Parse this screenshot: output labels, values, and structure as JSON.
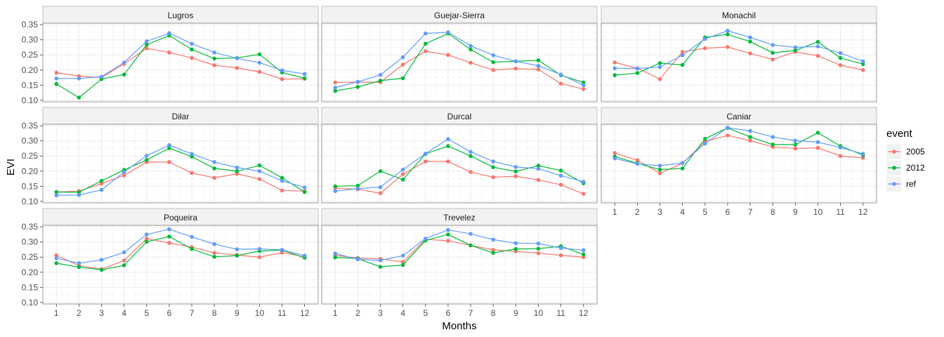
{
  "chart_data": {
    "type": "line",
    "facet_layout": "3 rows x 3 columns, free x labels on bottom facets",
    "xlabel": "Months",
    "ylabel": "EVI",
    "x": [
      1,
      2,
      3,
      4,
      5,
      6,
      7,
      8,
      9,
      10,
      11,
      12
    ],
    "x_tick_labels": [
      "1",
      "2",
      "3",
      "4",
      "5",
      "6",
      "7",
      "8",
      "9",
      "10",
      "11",
      "12"
    ],
    "ylim": [
      0.095,
      0.355
    ],
    "y_ticks": [
      0.1,
      0.15,
      0.2,
      0.25,
      0.3,
      0.35
    ],
    "y_tick_labels": [
      "0.10",
      "0.15",
      "0.20",
      "0.25",
      "0.30",
      "0.35"
    ],
    "grid": true,
    "theme": "bw",
    "legend": {
      "title": "event",
      "placement": "right",
      "entries": [
        {
          "label": "2005",
          "color": "#F8766D"
        },
        {
          "label": "2012",
          "color": "#00BA38"
        },
        {
          "label": "ref",
          "color": "#619CFF"
        }
      ]
    },
    "panels": [
      {
        "name": "Lugros",
        "series": [
          {
            "name": "2005",
            "values": [
              0.191,
              0.18,
              0.175,
              0.22,
              0.272,
              0.258,
              0.24,
              0.216,
              0.207,
              0.194,
              0.17,
              0.171
            ]
          },
          {
            "name": "2012",
            "values": [
              0.154,
              0.109,
              0.17,
              0.185,
              0.284,
              0.314,
              0.268,
              0.238,
              0.24,
              0.252,
              0.192,
              0.173
            ]
          },
          {
            "name": "ref",
            "values": [
              0.172,
              0.172,
              0.178,
              0.225,
              0.295,
              0.322,
              0.287,
              0.258,
              0.239,
              0.224,
              0.199,
              0.187
            ]
          }
        ]
      },
      {
        "name": "Guejar-Sierra",
        "series": [
          {
            "name": "2005",
            "values": [
              0.159,
              0.16,
              0.16,
              0.218,
              0.262,
              0.25,
              0.224,
              0.2,
              0.205,
              0.202,
              0.155,
              0.137
            ]
          },
          {
            "name": "2012",
            "values": [
              0.131,
              0.144,
              0.165,
              0.173,
              0.287,
              0.321,
              0.268,
              0.226,
              0.229,
              0.232,
              0.183,
              0.159
            ]
          },
          {
            "name": "ref",
            "values": [
              0.142,
              0.161,
              0.184,
              0.242,
              0.321,
              0.325,
              0.28,
              0.249,
              0.229,
              0.214,
              0.185,
              0.15
            ]
          }
        ]
      },
      {
        "name": "Monachil",
        "series": [
          {
            "name": "2005",
            "values": [
              0.225,
              0.206,
              0.17,
              0.26,
              0.272,
              0.276,
              0.255,
              0.235,
              0.26,
              0.247,
              0.216,
              0.2
            ]
          },
          {
            "name": "2012",
            "values": [
              0.183,
              0.19,
              0.223,
              0.217,
              0.308,
              0.318,
              0.294,
              0.257,
              0.265,
              0.293,
              0.24,
              0.22
            ]
          },
          {
            "name": "ref",
            "values": [
              0.206,
              0.205,
              0.21,
              0.249,
              0.303,
              0.33,
              0.308,
              0.283,
              0.275,
              0.278,
              0.256,
              0.229
            ]
          }
        ]
      },
      {
        "name": "Dilar",
        "series": [
          {
            "name": "2005",
            "values": [
              0.131,
              0.134,
              0.159,
              0.186,
              0.23,
              0.23,
              0.194,
              0.178,
              0.191,
              0.174,
              0.136,
              0.134
            ]
          },
          {
            "name": "2012",
            "values": [
              0.131,
              0.13,
              0.168,
              0.204,
              0.237,
              0.276,
              0.248,
              0.209,
              0.2,
              0.219,
              0.178,
              0.131
            ]
          },
          {
            "name": "ref",
            "values": [
              0.12,
              0.121,
              0.138,
              0.197,
              0.251,
              0.286,
              0.257,
              0.23,
              0.212,
              0.2,
              0.168,
              0.146
            ]
          }
        ]
      },
      {
        "name": "Durcal",
        "series": [
          {
            "name": "2005",
            "values": [
              0.144,
              0.14,
              0.127,
              0.19,
              0.232,
              0.232,
              0.197,
              0.18,
              0.183,
              0.171,
              0.155,
              0.125
            ]
          },
          {
            "name": "2012",
            "values": [
              0.15,
              0.152,
              0.2,
              0.172,
              0.257,
              0.283,
              0.25,
              0.213,
              0.199,
              0.218,
              0.202,
              0.16
            ]
          },
          {
            "name": "ref",
            "values": [
              0.134,
              0.142,
              0.147,
              0.205,
              0.258,
              0.306,
              0.264,
              0.232,
              0.214,
              0.208,
              0.185,
              0.165
            ]
          }
        ]
      },
      {
        "name": "Caniar",
        "series": [
          {
            "name": "2005",
            "values": [
              0.26,
              0.236,
              0.193,
              0.226,
              0.298,
              0.318,
              0.301,
              0.28,
              0.275,
              0.277,
              0.25,
              0.244
            ]
          },
          {
            "name": "2012",
            "values": [
              0.248,
              0.226,
              0.205,
              0.209,
              0.307,
              0.343,
              0.313,
              0.288,
              0.288,
              0.327,
              0.283,
              0.253
            ]
          },
          {
            "name": "ref",
            "values": [
              0.242,
              0.224,
              0.218,
              0.227,
              0.291,
              0.344,
              0.333,
              0.313,
              0.301,
              0.296,
              0.278,
              0.257
            ]
          }
        ]
      },
      {
        "name": "Poqueira",
        "series": [
          {
            "name": "2005",
            "values": [
              0.256,
              0.222,
              0.21,
              0.239,
              0.311,
              0.297,
              0.283,
              0.264,
              0.257,
              0.25,
              0.265,
              0.251
            ]
          },
          {
            "name": "2012",
            "values": [
              0.23,
              0.217,
              0.208,
              0.223,
              0.301,
              0.318,
              0.277,
              0.251,
              0.255,
              0.27,
              0.273,
              0.248
            ]
          },
          {
            "name": "ref",
            "values": [
              0.246,
              0.23,
              0.241,
              0.266,
              0.325,
              0.342,
              0.317,
              0.293,
              0.276,
              0.277,
              0.274,
              0.255
            ]
          }
        ]
      },
      {
        "name": "Trevelez",
        "series": [
          {
            "name": "2005",
            "values": [
              0.256,
              0.247,
              0.244,
              0.234,
              0.309,
              0.304,
              0.289,
              0.274,
              0.269,
              0.263,
              0.256,
              0.25
            ]
          },
          {
            "name": "2012",
            "values": [
              0.249,
              0.245,
              0.218,
              0.224,
              0.305,
              0.325,
              0.289,
              0.264,
              0.277,
              0.278,
              0.286,
              0.259
            ]
          },
          {
            "name": "ref",
            "values": [
              0.262,
              0.243,
              0.239,
              0.255,
              0.311,
              0.34,
              0.327,
              0.308,
              0.296,
              0.295,
              0.28,
              0.273
            ]
          }
        ]
      }
    ]
  }
}
